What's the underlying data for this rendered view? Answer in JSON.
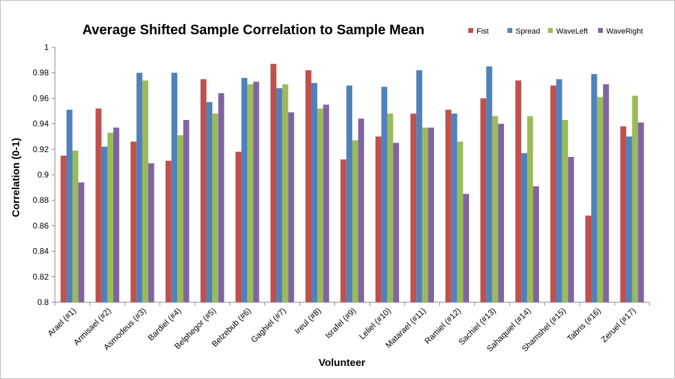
{
  "chart_data": {
    "type": "bar",
    "title": "Average Shifted Sample Correlation to Sample Mean",
    "xlabel": "Volunteer",
    "ylabel": "Correlation (0-1)",
    "ylim": [
      0.8,
      1.0
    ],
    "yticks": [
      0.8,
      0.82,
      0.84,
      0.86,
      0.88,
      0.9,
      0.92,
      0.94,
      0.96,
      0.98,
      1
    ],
    "ytick_labels": [
      "0.8",
      "0.82",
      "0.84",
      "0.86",
      "0.88",
      "0.9",
      "0.92",
      "0.94",
      "0.96",
      "0.98",
      "1"
    ],
    "grid": false,
    "legend_position": "top-right",
    "categories": [
      "Arael (#1)",
      "Armisael (#2)",
      "Asmodeus (#3)",
      "Bardiel (#4)",
      "Belphegor (#5)",
      "Belzebub (#6)",
      "Gaghiel (#7)",
      "Ireul (#8)",
      "Israfel (#9)",
      "Leliel (#10)",
      "Matarael (#11)",
      "Ramiel (#12)",
      "Sachiel (#13)",
      "Sahaquiel (#14)",
      "Shamshel (#15)",
      "Tabris (#16)",
      "Zeruel (#17)"
    ],
    "series": [
      {
        "name": "Fist",
        "color": "#c0504d",
        "values": [
          0.915,
          0.952,
          0.926,
          0.911,
          0.975,
          0.918,
          0.987,
          0.982,
          0.912,
          0.93,
          0.948,
          0.951,
          0.96,
          0.974,
          0.97,
          0.868,
          0.938
        ]
      },
      {
        "name": "Spread",
        "color": "#4f81bd",
        "values": [
          0.951,
          0.922,
          0.98,
          0.98,
          0.957,
          0.976,
          0.968,
          0.972,
          0.97,
          0.969,
          0.982,
          0.948,
          0.985,
          0.917,
          0.975,
          0.979,
          0.93
        ]
      },
      {
        "name": "WaveLeft",
        "color": "#9bbb59",
        "values": [
          0.919,
          0.933,
          0.974,
          0.931,
          0.948,
          0.971,
          0.971,
          0.952,
          0.927,
          0.948,
          0.937,
          0.926,
          0.946,
          0.946,
          0.943,
          0.961,
          0.962
        ]
      },
      {
        "name": "WaveRight",
        "color": "#8064a2",
        "values": [
          0.894,
          0.937,
          0.909,
          0.943,
          0.964,
          0.973,
          0.949,
          0.955,
          0.944,
          0.925,
          0.937,
          0.885,
          0.94,
          0.891,
          0.914,
          0.971,
          0.941
        ]
      }
    ]
  }
}
